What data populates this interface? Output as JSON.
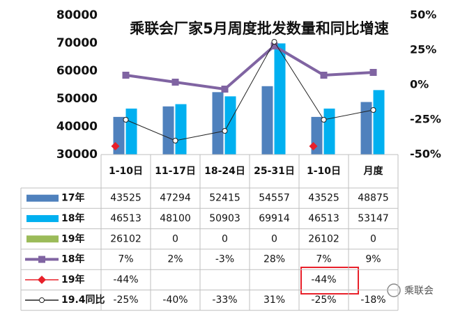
{
  "chart_data": {
    "type": "bar",
    "title": "乘联会厂家5月周度批发数量和同比增速",
    "categories": [
      "1-10日",
      "11-17日",
      "18-24日",
      "25-31日",
      "1-10日",
      "月度"
    ],
    "ylim": [
      30000,
      80000
    ],
    "yticks": [
      30000,
      40000,
      50000,
      60000,
      70000,
      80000
    ],
    "y2lim": [
      -50,
      50
    ],
    "y2ticks": [
      {
        "value": -50,
        "label": "-50%"
      },
      {
        "value": -25,
        "label": "-25%"
      },
      {
        "value": 0,
        "label": "0%"
      },
      {
        "value": 25,
        "label": "25%"
      },
      {
        "value": 50,
        "label": "50%"
      }
    ],
    "series": [
      {
        "name": "17年",
        "type": "bar",
        "color": "#4f81bd",
        "values": [
          43525,
          47294,
          52415,
          54557,
          43525,
          48875
        ]
      },
      {
        "name": "18年",
        "type": "bar",
        "color": "#00b0f0",
        "values": [
          46513,
          48100,
          50903,
          69914,
          46513,
          53147
        ]
      },
      {
        "name": "19年",
        "type": "bar",
        "color": "#9bbb59",
        "values": [
          26102,
          0,
          0,
          0,
          26102,
          0
        ]
      },
      {
        "name": "18年",
        "type": "line",
        "axis": "y2",
        "marker": "square",
        "color": "#8064a2",
        "values": [
          7,
          2,
          -3,
          28,
          7,
          9
        ],
        "value_labels": [
          "7%",
          "2%",
          "-3%",
          "28%",
          "7%",
          "9%"
        ]
      },
      {
        "name": "19年",
        "type": "line",
        "axis": "y2",
        "marker": "diamond",
        "color": "#e8202a",
        "values": [
          -44,
          null,
          null,
          null,
          -44,
          null
        ],
        "value_labels": [
          "-44%",
          null,
          null,
          null,
          "-44%",
          null
        ]
      },
      {
        "name": "19.4同比",
        "type": "line",
        "axis": "y2",
        "marker": "circle",
        "color": "#222222",
        "values": [
          -25,
          -40,
          -33,
          31,
          -25,
          -18
        ],
        "value_labels": [
          "-25%",
          "-40%",
          "-33%",
          "31%",
          "-25%",
          "-18%"
        ]
      }
    ],
    "watermark": "乘联会"
  }
}
